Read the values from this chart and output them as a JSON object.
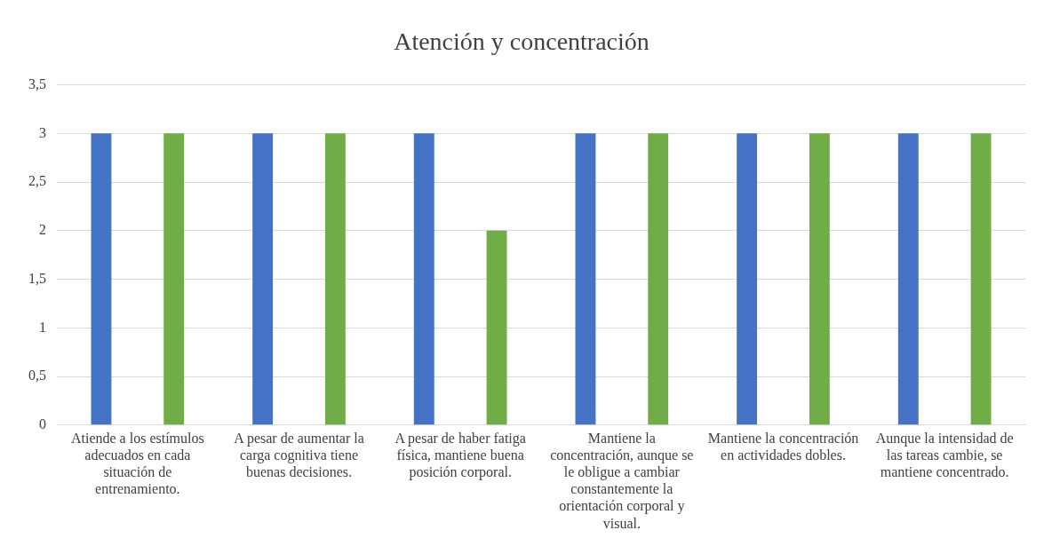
{
  "chart_data": {
    "type": "bar",
    "title": "Atención y concentración",
    "categories": [
      "Atiende a los estímulos adecuados en cada situación de entrenamiento.",
      "A pesar de aumentar la carga cognitiva tiene buenas decisiones.",
      "A pesar de haber fatiga física, mantiene buena posición corporal.",
      "Mantiene la concentración, aunque se le obligue a cambiar constantemente la orientación corporal y visual.",
      "Mantiene la concentración en actividades dobles.",
      "Aunque la intensidad de las tareas cambie, se mantiene concentrado."
    ],
    "series": [
      {
        "color": "#4472c4",
        "values": [
          3,
          3,
          3,
          3,
          3,
          3
        ]
      },
      {
        "color": "#70ad47",
        "values": [
          3,
          3,
          2,
          3,
          3,
          3
        ]
      }
    ],
    "ylim": [
      0,
      3.5
    ],
    "yticks": [
      0,
      {
        "value": 0.5,
        "label": "0,5"
      },
      1,
      {
        "value": 1.5,
        "label": "1,5"
      },
      2,
      {
        "value": 2.5,
        "label": "2,5"
      },
      3,
      {
        "value": 3.5,
        "label": "3,5"
      }
    ],
    "grid": "y",
    "legend": false
  }
}
